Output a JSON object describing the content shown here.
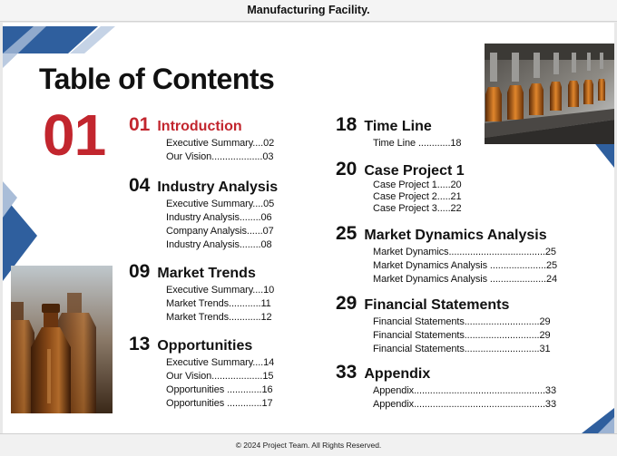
{
  "header": {
    "text": "Manufacturing Facility."
  },
  "page": {
    "title": "Table of Contents",
    "big_number": "01"
  },
  "sections": [
    {
      "number": "01",
      "title": "Introduction",
      "entries": [
        "Executive Summary....02",
        "Our Vision...................03"
      ]
    },
    {
      "number": "04",
      "title": "Industry Analysis",
      "entries": [
        "Executive Summary....05",
        "Industry Analysis........06",
        "Company Analysis......07",
        "Industry Analysis........08"
      ]
    },
    {
      "number": "09",
      "title": "Market Trends",
      "entries": [
        "Executive Summary....10",
        "Market Trends............11",
        "Market Trends............12"
      ]
    },
    {
      "number": "13",
      "title": "Opportunities",
      "entries": [
        "Executive Summary....14",
        "Our Vision...................15",
        "Opportunities .............16",
        "Opportunities .............17"
      ]
    },
    {
      "number": "18",
      "title": "Time Line",
      "entries": [
        "Time Line ............18"
      ]
    },
    {
      "number": "20",
      "title": "Case Project 1",
      "entries": [
        "Case Project 1.....20",
        "Case Project 2.....21",
        "Case Project 3.....22"
      ]
    },
    {
      "number": "25",
      "title": "Market Dynamics Analysis",
      "entries": [
        "Market Dynamics....................................25",
        "Market Dynamics Analysis .....................25",
        "Market Dynamics Analysis .....................24"
      ]
    },
    {
      "number": "29",
      "title": "Financial Statements",
      "entries": [
        "Financial Statements............................29",
        "Financial Statements............................29",
        "Financial Statements............................31"
      ]
    },
    {
      "number": "33",
      "title": "Appendix",
      "entries": [
        "Appendix.................................................33",
        "Appendix.................................................33"
      ]
    }
  ],
  "footer": {
    "text": "© 2024 Project Team. All Rights Reserved."
  },
  "colors": {
    "accent_red": "#c2262e",
    "accent_blue": "#2f5f9e",
    "text": "#111111"
  },
  "images": {
    "left_photo": "amber-glass-bottles-photo",
    "right_photo": "bottling-production-line-photo"
  }
}
